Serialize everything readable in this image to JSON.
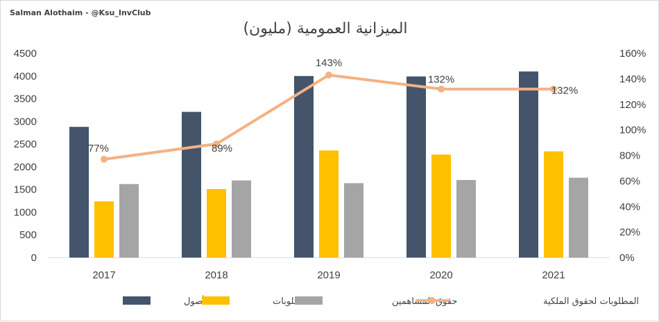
{
  "credit": "Salman Alothaim - @Ksu_InvClub",
  "chart_data": {
    "type": "bar",
    "title": "الميزانية العمومية (مليون)",
    "categories": [
      "2017",
      "2018",
      "2019",
      "2020",
      "2021"
    ],
    "series": [
      {
        "name": "الأصول",
        "kind": "bar",
        "axis": "left",
        "color": "#44546a",
        "values": [
          2880,
          3210,
          4000,
          3990,
          4100
        ]
      },
      {
        "name": "المطلوبات",
        "kind": "bar",
        "axis": "left",
        "color": "#ffc000",
        "values": [
          1240,
          1510,
          2360,
          2270,
          2340
        ]
      },
      {
        "name": "حقوق المساهمين",
        "kind": "bar",
        "axis": "left",
        "color": "#a5a5a5",
        "values": [
          1620,
          1700,
          1640,
          1710,
          1760
        ]
      },
      {
        "name": "المطلوبات لحقوق الملكية",
        "kind": "line",
        "axis": "right",
        "color": "#f4b183",
        "values": [
          77,
          89,
          143,
          132,
          132
        ],
        "labels": [
          "77%",
          "89%",
          "143%",
          "132%",
          "132%"
        ]
      }
    ],
    "y_left": {
      "min": 0,
      "max": 4500,
      "ticks": [
        "0",
        "500",
        "1000",
        "1500",
        "2000",
        "2500",
        "3000",
        "3500",
        "4000",
        "4500"
      ]
    },
    "y_right": {
      "min": 0,
      "max": 160,
      "ticks": [
        "0%",
        "20%",
        "40%",
        "60%",
        "80%",
        "100%",
        "120%",
        "140%",
        "160%"
      ]
    },
    "legend_position": "bottom",
    "grid": false
  }
}
